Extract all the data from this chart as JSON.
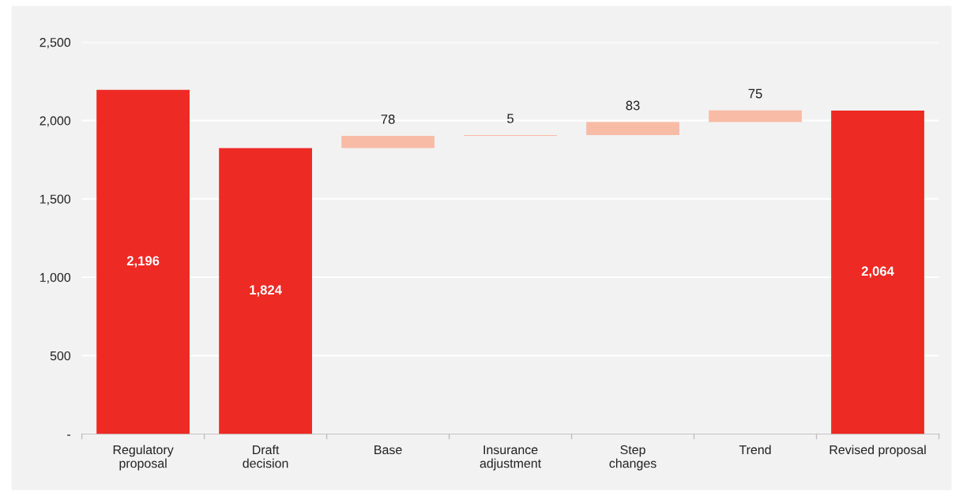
{
  "chart_data": {
    "type": "bar",
    "categories": [
      "Regulatory\nproposal",
      "Draft\ndecision",
      "Base",
      "Insurance\nadjustment",
      "Step\nchanges",
      "Trend",
      "Revised proposal"
    ],
    "values": [
      2196,
      1824,
      78,
      5,
      83,
      75,
      2064
    ],
    "base": [
      0,
      0,
      1824,
      1902,
      1907,
      1990,
      0
    ],
    "colors": [
      "#ee2a24",
      "#ee2a24",
      "#f8bba6",
      "#f8bba6",
      "#f8bba6",
      "#f8bba6",
      "#ee2a24"
    ],
    "value_labels": [
      "2,196",
      "1,824",
      "78",
      "5",
      "83",
      "75",
      "2,064"
    ],
    "ylim": [
      0,
      2500
    ],
    "yticks": [
      {
        "value": 0,
        "label": "-"
      },
      {
        "value": 500,
        "label": "500"
      },
      {
        "value": 1000,
        "label": "1,000"
      },
      {
        "value": 1500,
        "label": "1,500"
      },
      {
        "value": 2000,
        "label": "2,000"
      },
      {
        "value": 2500,
        "label": "2,500"
      }
    ],
    "grid": "y"
  }
}
